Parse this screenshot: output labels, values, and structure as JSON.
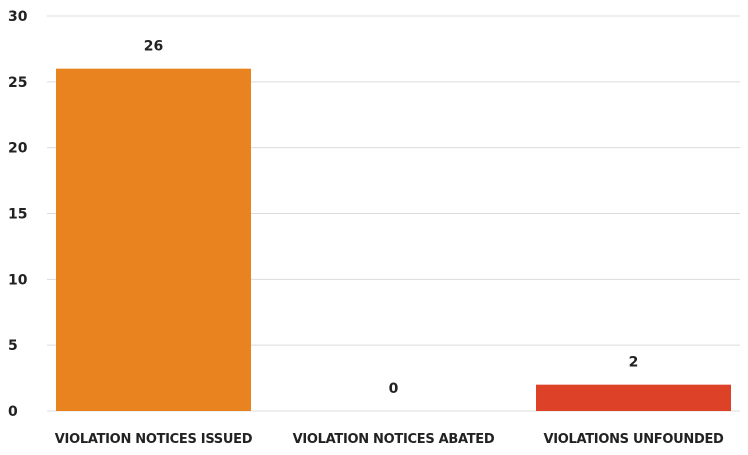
{
  "chart_data": {
    "type": "bar",
    "title": "",
    "xlabel": "",
    "ylabel": "",
    "categories": [
      "VIOLATION NOTICES ISSUED",
      "VIOLATION NOTICES ABATED",
      "VIOLATIONS UNFOUNDED"
    ],
    "values": [
      26,
      0,
      2
    ],
    "data_labels": [
      "26",
      "0",
      "2"
    ],
    "colors": [
      "#e8831f",
      "#e8831f",
      "#dd4128"
    ],
    "ylim": [
      0,
      30
    ],
    "yticks": [
      0,
      5,
      10,
      15,
      20,
      25,
      30
    ],
    "ytick_labels": [
      "0",
      "5",
      "10",
      "15",
      "20",
      "25",
      "30"
    ],
    "grid": true,
    "legend": "none"
  }
}
